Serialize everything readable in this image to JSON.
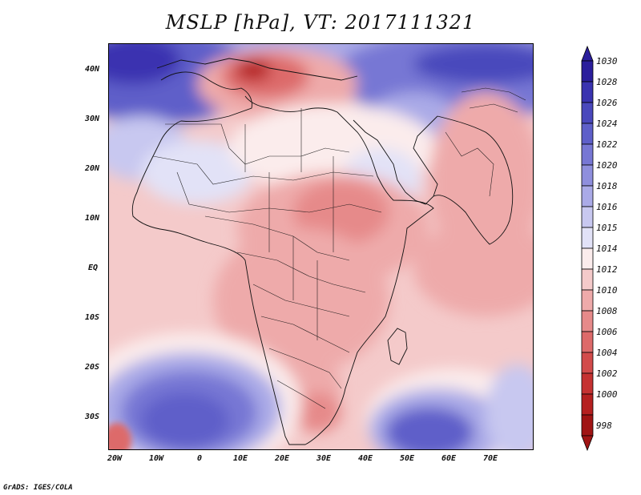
{
  "title": "MSLP [hPa], VT: 2017111321",
  "credit": "GrADS: IGES/COLA",
  "y_ticks": [
    "40N",
    "30N",
    "20N",
    "10N",
    "EQ",
    "10S",
    "20S",
    "30S"
  ],
  "x_ticks": [
    "20W",
    "10W",
    "0",
    "10E",
    "20E",
    "30E",
    "40E",
    "50E",
    "60E",
    "70E"
  ],
  "colorbar": {
    "labels": [
      "1030",
      "1028",
      "1026",
      "1024",
      "1022",
      "1020",
      "1018",
      "1016",
      "1015",
      "1014",
      "1012",
      "1010",
      "1008",
      "1006",
      "1004",
      "1002",
      "1000",
      "998"
    ],
    "colors": [
      "#2b1e9c",
      "#3a33b0",
      "#4a48bc",
      "#5e5fc9",
      "#7777d4",
      "#8f8fdd",
      "#aaaae7",
      "#c8c8f0",
      "#e2e2f7",
      "#fbecec",
      "#f4caca",
      "#eeaaaa",
      "#e68a8a",
      "#dd6a6a",
      "#d24b4b",
      "#c53232",
      "#b52020",
      "#a01414"
    ]
  },
  "colors": {
    "high": "#3a33b0",
    "neutral": "#fbecec",
    "low": "#b52020"
  }
}
